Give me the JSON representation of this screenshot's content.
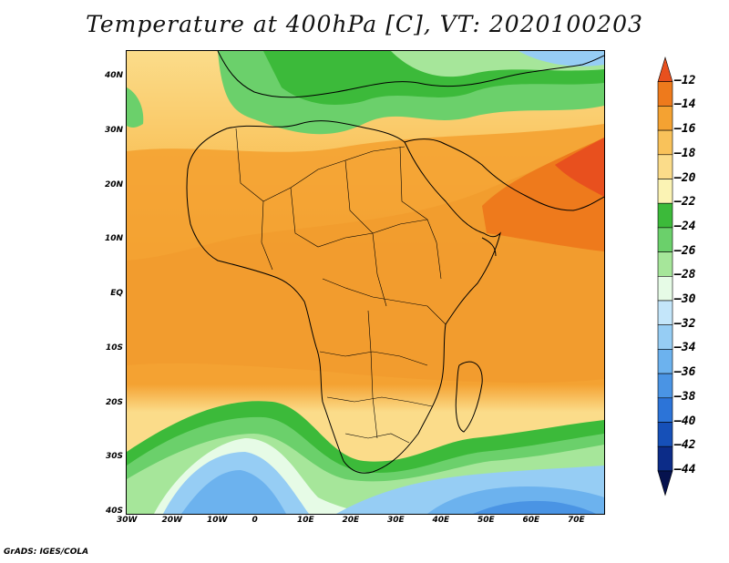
{
  "title": "Temperature at 400hPa [C], VT: 2020100203",
  "credit": "GrADS: IGES/COLA",
  "map": {
    "lon_labels": [
      "30W",
      "20W",
      "10W",
      "0",
      "10E",
      "20E",
      "30E",
      "40E",
      "50E",
      "60E",
      "70E"
    ],
    "lat_labels": [
      "40N",
      "30N",
      "20N",
      "10N",
      "EQ",
      "10S",
      "20S",
      "30S",
      "40S"
    ],
    "lon_range": [
      -30,
      75
    ],
    "lat_range": [
      -40,
      45
    ]
  },
  "colorbar": {
    "levels": [
      "-12",
      "-14",
      "-16",
      "-18",
      "-20",
      "-22",
      "-24",
      "-26",
      "-28",
      "-30",
      "-32",
      "-34",
      "-36",
      "-38",
      "-40",
      "-42",
      "-44"
    ],
    "colors": [
      "#e8501e",
      "#ee7a1c",
      "#f4a232",
      "#f9c25a",
      "#fbdc8a",
      "#fbf3b4",
      "#3cba3a",
      "#6bd06b",
      "#a6e69a",
      "#e6fbe6",
      "#c4e6fa",
      "#96cdf4",
      "#6cb2ee",
      "#4a94e4",
      "#2c74d8",
      "#1650b8",
      "#0c2c88",
      "#06124e"
    ]
  }
}
